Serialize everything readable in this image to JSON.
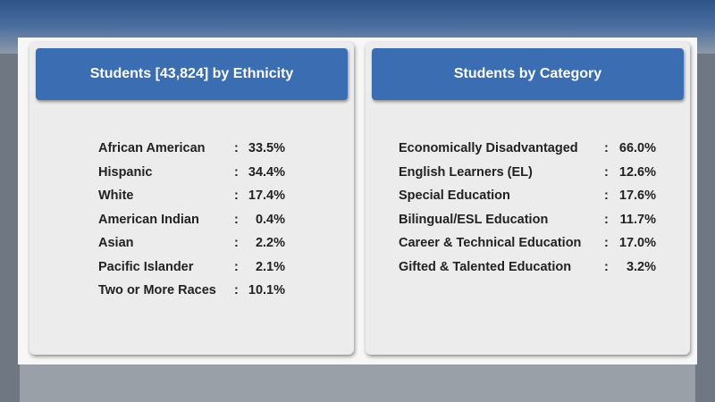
{
  "separator": ":",
  "panels": [
    {
      "title": "Students [43,824] by Ethnicity",
      "rows": [
        [
          "African American",
          "33.5%"
        ],
        [
          "Hispanic",
          "34.4%"
        ],
        [
          "White",
          "17.4%"
        ],
        [
          "American Indian",
          "0.4%"
        ],
        [
          "Asian",
          "2.2%"
        ],
        [
          "Pacific Islander",
          "2.1%"
        ],
        [
          "Two or More Races",
          "10.1%"
        ]
      ]
    },
    {
      "title": "Students by Category",
      "rows": [
        [
          "Economically Disadvantaged",
          "66.0%"
        ],
        [
          "English Learners (EL)",
          "12.6%"
        ],
        [
          "Special Education",
          "17.6%"
        ],
        [
          "Bilingual/ESL Education",
          "11.7%"
        ],
        [
          "Career & Technical Education",
          "17.0%"
        ],
        [
          "Gifted & Talented Education",
          "3.2%"
        ]
      ]
    }
  ]
}
